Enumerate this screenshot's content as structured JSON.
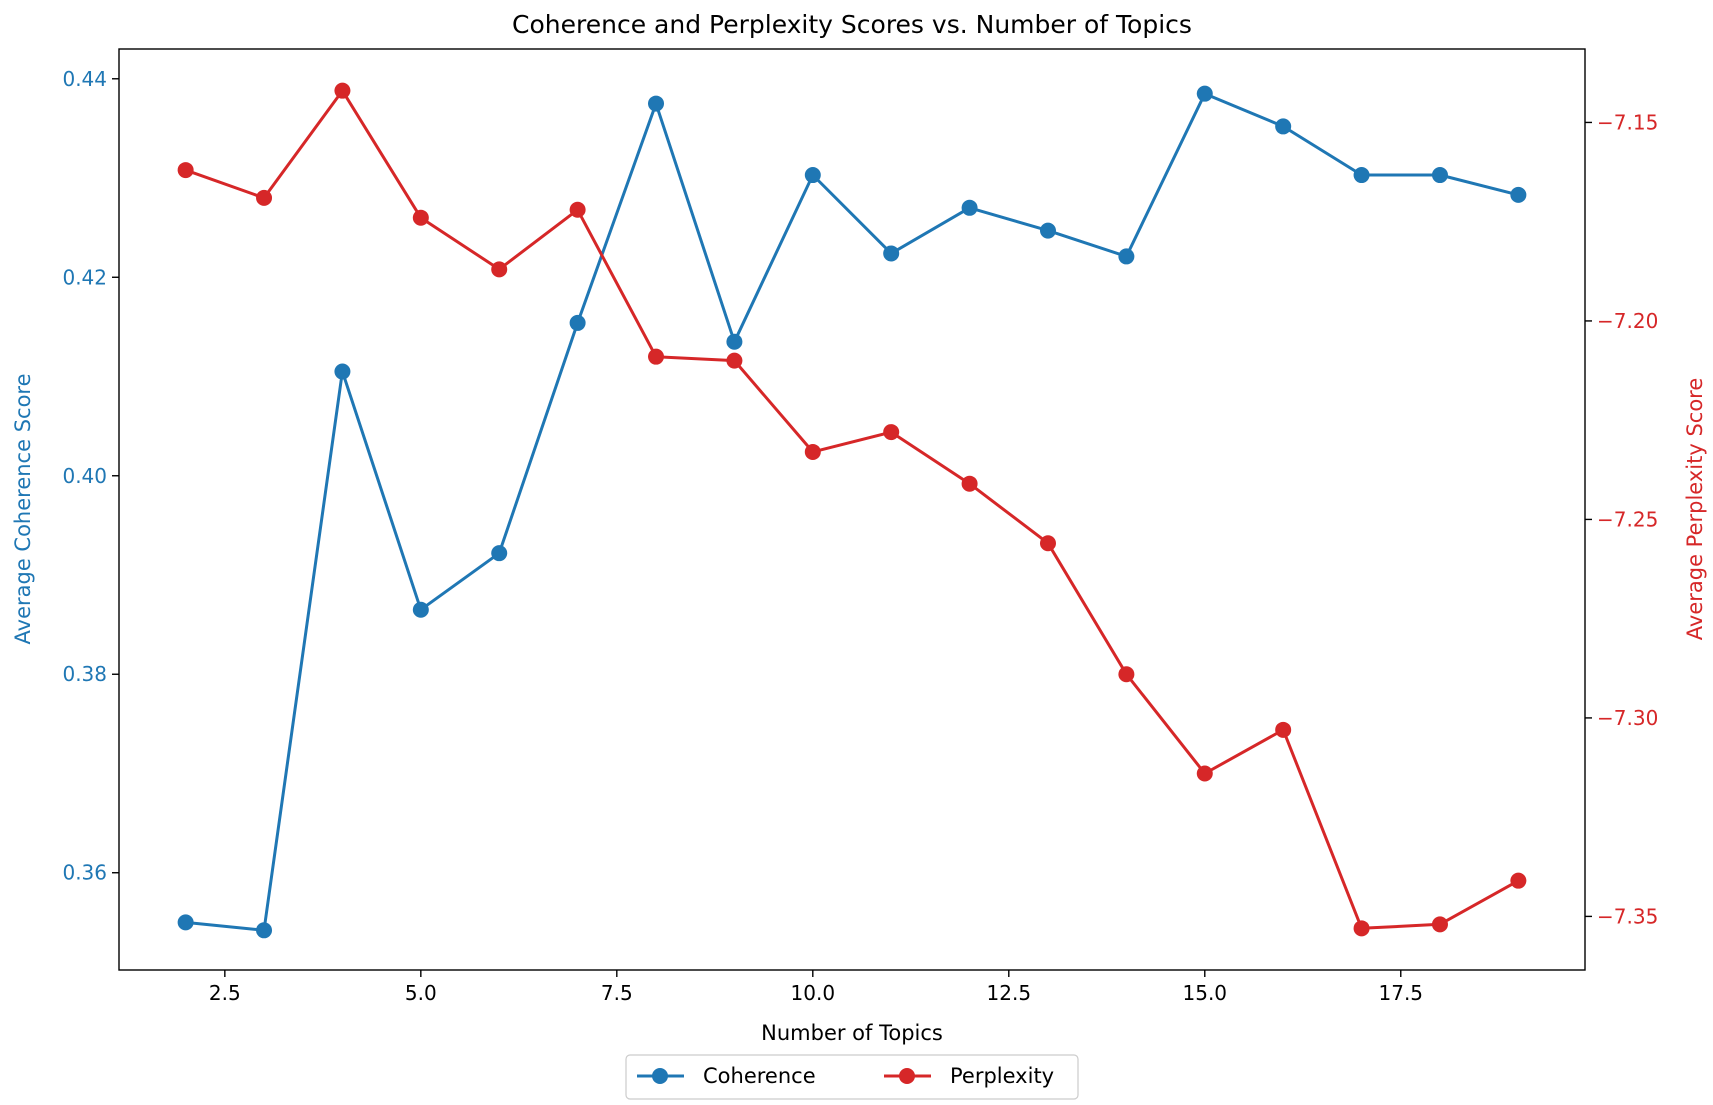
{
  "chart_data": {
    "type": "line",
    "title": "Coherence and Perplexity Scores vs. Number of Topics",
    "xlabel": "Number of Topics",
    "ylabel_left": "Average Coherence Score",
    "ylabel_right": "Average Perplexity Score",
    "x": [
      2,
      3,
      4,
      5,
      6,
      7,
      8,
      9,
      10,
      11,
      12,
      13,
      14,
      15,
      16,
      17,
      18,
      19
    ],
    "x_ticks": [
      2.5,
      5.0,
      7.5,
      10.0,
      12.5,
      15.0,
      17.5
    ],
    "x_tick_labels": [
      "2.5",
      "5.0",
      "7.5",
      "10.0",
      "12.5",
      "15.0",
      "17.5"
    ],
    "xlim": [
      1.15,
      19.85
    ],
    "left_axis": {
      "ylim": [
        0.3502,
        0.443
      ],
      "ticks": [
        0.36,
        0.38,
        0.4,
        0.42,
        0.44
      ],
      "tick_labels": [
        "0.36",
        "0.38",
        "0.40",
        "0.42",
        "0.44"
      ],
      "color": "#1f77b4"
    },
    "right_axis": {
      "ylim": [
        -7.3635,
        -7.1315
      ],
      "ticks": [
        -7.35,
        -7.3,
        -7.25,
        -7.2,
        -7.15
      ],
      "tick_labels": [
        "−7.35",
        "−7.30",
        "−7.25",
        "−7.20",
        "−7.15"
      ],
      "color": "#d62728"
    },
    "series": [
      {
        "name": "Coherence",
        "axis": "left",
        "color": "#1f77b4",
        "values": [
          0.355,
          0.3542,
          0.4105,
          0.3865,
          0.3922,
          0.4154,
          0.4375,
          0.4135,
          0.4303,
          0.4224,
          0.427,
          0.4247,
          0.4221,
          0.4385,
          0.4352,
          0.4303,
          0.4303,
          0.4283
        ]
      },
      {
        "name": "Perplexity",
        "axis": "right",
        "color": "#d62728",
        "values": [
          -7.162,
          -7.169,
          -7.142,
          -7.174,
          -7.187,
          -7.172,
          -7.209,
          -7.21,
          -7.233,
          -7.228,
          -7.241,
          -7.256,
          -7.289,
          -7.314,
          -7.303,
          -7.353,
          -7.352,
          -7.341
        ]
      }
    ],
    "legend": {
      "placement": "bottom-center",
      "columns": 2
    },
    "grid": false
  }
}
